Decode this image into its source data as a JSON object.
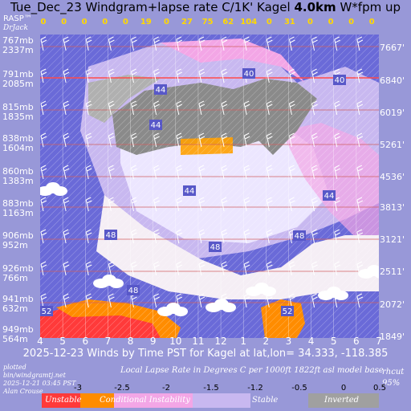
{
  "header": {
    "title_prefix": "Tue_Dec_23 Windgram+lapse rate C/1K'",
    "site": "Kagel",
    "height": "4.0km",
    "wfpm": "W*fpm up",
    "brand": "RASP™",
    "author_tag": "DrJack"
  },
  "wstar_values": [
    "0",
    "0",
    "0",
    "0",
    "0",
    "19",
    "0",
    "27",
    "75",
    "62",
    "104",
    "0",
    "31",
    "0",
    "0",
    "0",
    "0"
  ],
  "left_levels": [
    {
      "mb": "767mb",
      "m": "2337m"
    },
    {
      "mb": "791mb",
      "m": "2085m"
    },
    {
      "mb": "815mb",
      "m": "1835m"
    },
    {
      "mb": "838mb",
      "m": "1604m"
    },
    {
      "mb": "860mb",
      "m": "1383m"
    },
    {
      "mb": "883mb",
      "m": "1163m"
    },
    {
      "mb": "906mb",
      "m": "952m"
    },
    {
      "mb": "926mb",
      "m": "766m"
    },
    {
      "mb": "941mb",
      "m": "632m"
    },
    {
      "mb": "949mb",
      "m": "564m"
    }
  ],
  "right_levels": [
    "7667'",
    "6840'",
    "6019'",
    "5261'",
    "4536'",
    "3813'",
    "3121'",
    "2511'",
    "2072'",
    "1849'"
  ],
  "x_ticks": [
    "4",
    "5",
    "6",
    "7",
    "8",
    "9",
    "10",
    "11",
    "12",
    "1",
    "2",
    "3",
    "4",
    "5",
    "6",
    "7"
  ],
  "x_axis_title": "2025-12-23 Winds by Time PST for Kagel at lat,lon= 34.333, -118.385",
  "footer": {
    "plotted": "plotted",
    "script": "bin/windgramtj.net",
    "date": "2025-12-21 03:45 PST",
    "author": "Alan Crouse",
    "lapse_title": "Local Lapse Rate in Degrees C per 1000ft   1822ft asl model base",
    "rhcut": "rhcut",
    "rhcut_value": "95%"
  },
  "colorbar": {
    "ticks": [
      "-3",
      "-2.5",
      "-2",
      "-1.5",
      "-1.2",
      "-0.5",
      "0",
      "0.5"
    ],
    "labels": [
      "Unstable",
      "Conditional Instability",
      "Stable",
      "Inverted"
    ]
  },
  "wind_labels": [
    "40",
    "40",
    "44",
    "44",
    "44",
    "44",
    "48",
    "48",
    "48",
    "48",
    "52",
    "52"
  ],
  "chart_data": {
    "type": "heatmap",
    "title": "Tue_Dec_23 Windgram+lapse rate C/1K' Kagel 4.0km W*fpm up",
    "xlabel": "2025-12-23 Winds by Time PST for Kagel at lat,lon= 34.333, -118.385",
    "x": [
      "4",
      "5",
      "6",
      "7",
      "8",
      "9",
      "10",
      "11",
      "12",
      "1",
      "2",
      "3",
      "4",
      "5",
      "6",
      "7"
    ],
    "y_pressure_mb": [
      767,
      791,
      815,
      838,
      860,
      883,
      906,
      926,
      941,
      949
    ],
    "y_height_m": [
      2337,
      2085,
      1835,
      1604,
      1383,
      1163,
      952,
      766,
      632,
      564
    ],
    "y_height_ft": [
      7667,
      6840,
      6019,
      5261,
      4536,
      3813,
      3121,
      2511,
      2072,
      1849
    ],
    "wstar_fpm": [
      0,
      0,
      0,
      0,
      0,
      19,
      0,
      27,
      75,
      62,
      104,
      0,
      31,
      0,
      0,
      0,
      0
    ],
    "wind_speed_labels": [
      40,
      40,
      44,
      44,
      44,
      44,
      48,
      48,
      48,
      48,
      52,
      52
    ],
    "colorbar_ticks": [
      -3,
      -2.5,
      -2,
      -1.5,
      -1.2,
      -0.5,
      0,
      0.5
    ],
    "colorbar_classes": [
      "Unstable",
      "Conditional Instability",
      "Stable",
      "Inverted"
    ],
    "rhcut_percent": 95
  }
}
